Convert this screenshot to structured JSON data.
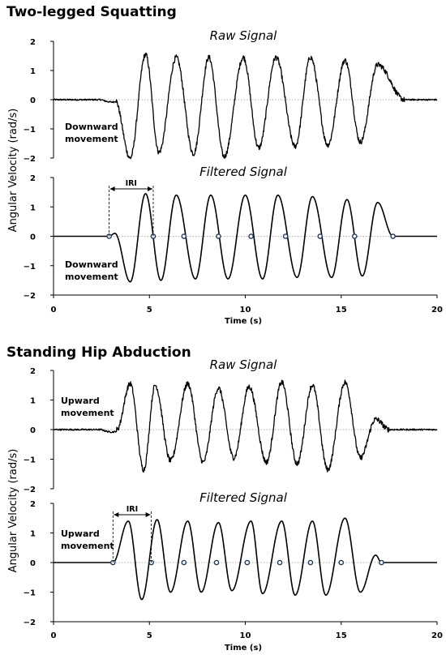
{
  "chart_data": [
    {
      "section_title": "Two-legged Squatting",
      "ylabel": "Angular Velocity (rad/s)",
      "xlabel": "Time (s)",
      "xlim": [
        0,
        20
      ],
      "x_ticks": [
        "0",
        "5",
        "10",
        "15",
        "20"
      ],
      "panels": [
        {
          "type": "line",
          "title": "Raw Signal",
          "ylim": [
            -2,
            2
          ],
          "y_ticks": [
            "2",
            "1",
            "0",
            "−1",
            "−2"
          ],
          "annotation": [
            "Downward",
            "movement"
          ],
          "signal": {
            "noisy": true,
            "start": 3.2,
            "end": 18.3,
            "peaks": [
              [
                4.8,
                1.55
              ],
              [
                6.4,
                1.45
              ],
              [
                8.1,
                1.45
              ],
              [
                9.9,
                1.45
              ],
              [
                11.6,
                1.45
              ],
              [
                13.4,
                1.45
              ],
              [
                15.2,
                1.35
              ],
              [
                16.9,
                1.2
              ]
            ],
            "troughs": [
              [
                4.0,
                -2.0
              ],
              [
                5.5,
                -1.8
              ],
              [
                7.3,
                -1.85
              ],
              [
                8.9,
                -1.95
              ],
              [
                10.7,
                -1.65
              ],
              [
                12.6,
                -1.6
              ],
              [
                14.3,
                -1.55
              ],
              [
                16.0,
                -1.45
              ]
            ]
          }
        },
        {
          "type": "line",
          "title": "Filtered Signal",
          "ylim": [
            -2,
            2
          ],
          "y_ticks": [
            "2",
            "1",
            "0",
            "−1",
            "−2"
          ],
          "annotation": [
            "Downward",
            "movement"
          ],
          "iri_label": "IRI",
          "iri_range": [
            2.9,
            5.2
          ],
          "zero_crossings": [
            2.9,
            5.2,
            6.8,
            8.6,
            10.3,
            12.1,
            13.9,
            15.7,
            17.7
          ],
          "signal": {
            "noisy": false,
            "start": 2.9,
            "end": 17.7,
            "peaks": [
              [
                3.2,
                0.1
              ],
              [
                4.8,
                1.45
              ],
              [
                6.4,
                1.4
              ],
              [
                8.2,
                1.4
              ],
              [
                10.0,
                1.4
              ],
              [
                11.7,
                1.4
              ],
              [
                13.5,
                1.35
              ],
              [
                15.3,
                1.25
              ],
              [
                16.9,
                1.15
              ]
            ],
            "troughs": [
              [
                4.0,
                -1.55
              ],
              [
                5.6,
                -1.5
              ],
              [
                7.4,
                -1.45
              ],
              [
                9.1,
                -1.45
              ],
              [
                10.9,
                -1.45
              ],
              [
                12.7,
                -1.4
              ],
              [
                14.5,
                -1.4
              ],
              [
                16.1,
                -1.35
              ]
            ]
          }
        }
      ]
    },
    {
      "section_title": "Standing Hip Abduction",
      "ylabel": "Angular Velocity (rad/s)",
      "xlabel": "Time (s)",
      "xlim": [
        0,
        20
      ],
      "x_ticks": [
        "0",
        "5",
        "10",
        "15",
        "20"
      ],
      "panels": [
        {
          "type": "line",
          "title": "Raw Signal",
          "ylim": [
            -2,
            2
          ],
          "y_ticks": [
            "2",
            "1",
            "0",
            "−1",
            "−2"
          ],
          "annotation": [
            "Upward",
            "movement"
          ],
          "signal": {
            "noisy": true,
            "start": 3.3,
            "end": 17.5,
            "peaks": [
              [
                4.0,
                1.55
              ],
              [
                5.3,
                1.5
              ],
              [
                7.0,
                1.55
              ],
              [
                8.6,
                1.4
              ],
              [
                10.2,
                1.45
              ],
              [
                11.9,
                1.6
              ],
              [
                13.5,
                1.5
              ],
              [
                15.2,
                1.6
              ],
              [
                16.8,
                0.35
              ]
            ],
            "troughs": [
              [
                4.7,
                -1.35
              ],
              [
                6.1,
                -1.05
              ],
              [
                7.8,
                -1.1
              ],
              [
                9.4,
                -0.95
              ],
              [
                11.1,
                -1.1
              ],
              [
                12.7,
                -1.15
              ],
              [
                14.3,
                -1.35
              ],
              [
                16.0,
                -0.95
              ]
            ]
          }
        },
        {
          "type": "line",
          "title": "Filtered Signal",
          "ylim": [
            -2,
            2
          ],
          "y_ticks": [
            "2",
            "1",
            "0",
            "−1",
            "−2"
          ],
          "annotation": [
            "Upward",
            "movement"
          ],
          "iri_label": "IRI",
          "iri_range": [
            3.1,
            5.1
          ],
          "zero_crossings": [
            3.1,
            5.1,
            6.8,
            8.5,
            10.1,
            11.8,
            13.4,
            15.0,
            17.1
          ],
          "signal": {
            "noisy": false,
            "start": 3.1,
            "end": 17.1,
            "peaks": [
              [
                3.9,
                1.4
              ],
              [
                5.4,
                1.45
              ],
              [
                7.0,
                1.4
              ],
              [
                8.6,
                1.35
              ],
              [
                10.3,
                1.4
              ],
              [
                11.9,
                1.4
              ],
              [
                13.5,
                1.4
              ],
              [
                15.2,
                1.5
              ],
              [
                16.8,
                0.25
              ]
            ],
            "troughs": [
              [
                4.6,
                -1.25
              ],
              [
                6.1,
                -1.0
              ],
              [
                7.7,
                -1.0
              ],
              [
                9.3,
                -0.95
              ],
              [
                10.9,
                -1.05
              ],
              [
                12.6,
                -1.1
              ],
              [
                14.2,
                -1.1
              ],
              [
                16.0,
                -1.0
              ]
            ]
          }
        }
      ]
    }
  ]
}
